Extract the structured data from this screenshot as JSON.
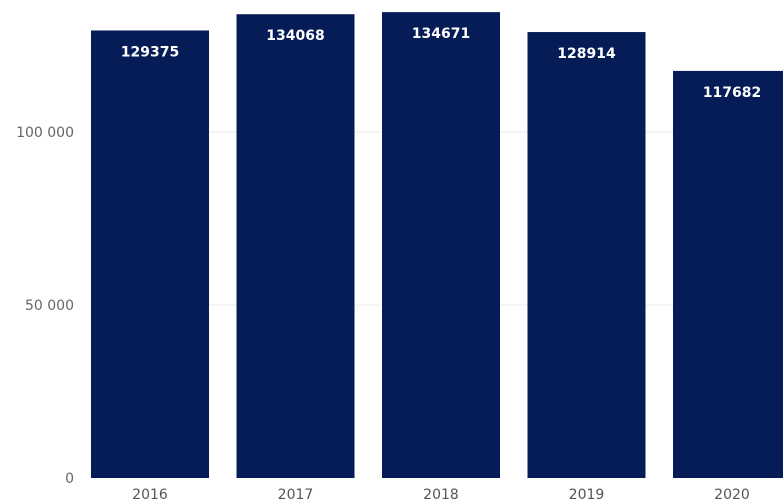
{
  "chart_data": {
    "type": "bar",
    "categories": [
      "2016",
      "2017",
      "2018",
      "2019",
      "2020"
    ],
    "values": [
      129375,
      134068,
      134671,
      128914,
      117682
    ],
    "data_labels": [
      "129375",
      "134068",
      "134671",
      "128914",
      "117682"
    ],
    "y_ticks": [
      {
        "value": 0,
        "label": "0"
      },
      {
        "value": 50000,
        "label": "50 000"
      },
      {
        "value": 100000,
        "label": "100 000"
      }
    ],
    "title": "",
    "xlabel": "",
    "ylabel": "",
    "ylim": [
      0,
      135000
    ],
    "grid": true,
    "legend": "none",
    "bar_color": "#061c57",
    "label_color": "#ffffff",
    "grid_color": "#ececec"
  }
}
